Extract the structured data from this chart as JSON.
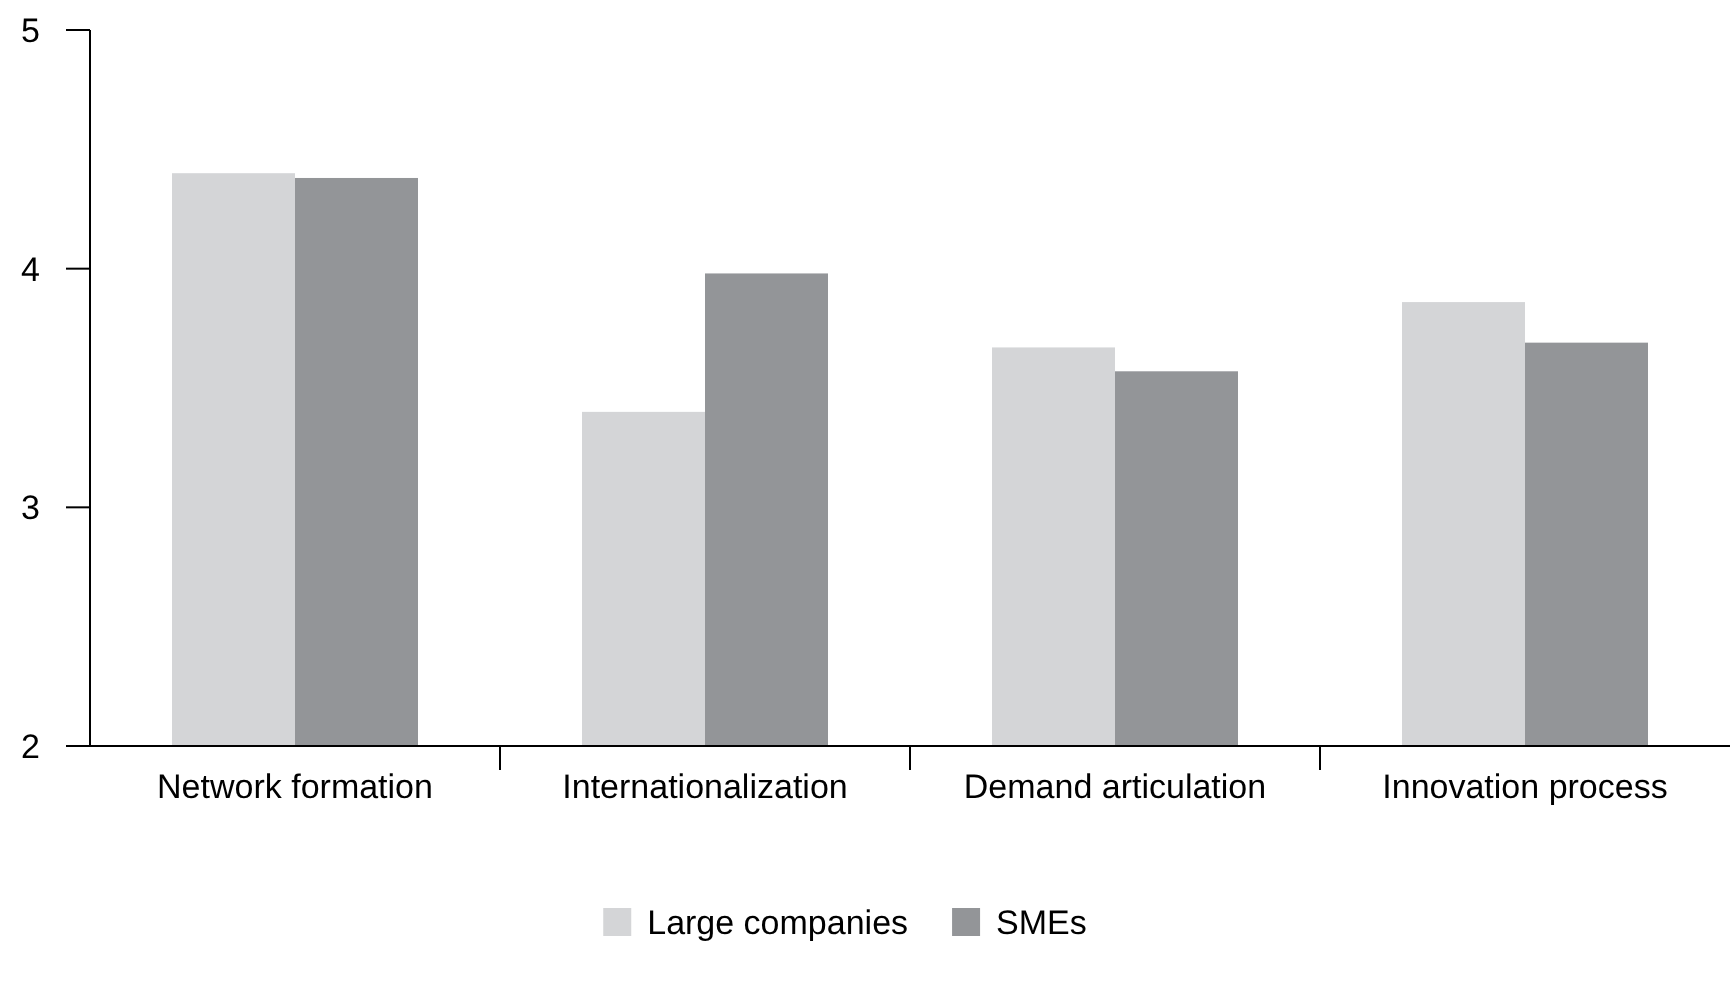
{
  "chart_data": {
    "type": "bar",
    "categories": [
      "Network formation",
      "Internationalization",
      "Demand articulation",
      "Innovation process"
    ],
    "series": [
      {
        "name": "Large companies",
        "color": "#d4d5d7",
        "values": [
          4.4,
          3.4,
          3.67,
          3.86
        ]
      },
      {
        "name": "SMEs",
        "color": "#939598",
        "values": [
          4.38,
          3.98,
          3.57,
          3.69
        ]
      }
    ],
    "ylim": [
      2,
      5
    ],
    "yticks": [
      2,
      3,
      4,
      5
    ],
    "grid": false,
    "legend": "bottom"
  }
}
